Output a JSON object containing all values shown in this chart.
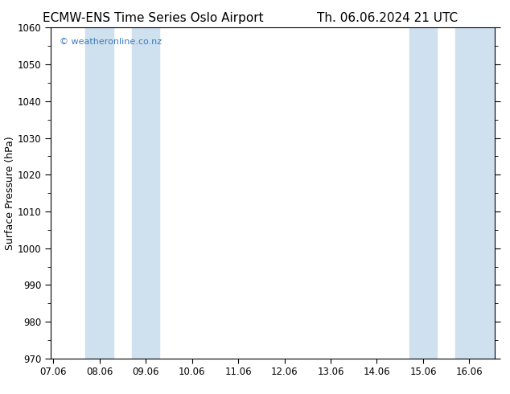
{
  "title_left": "ECMW-ENS Time Series Oslo Airport",
  "title_right": "Th. 06.06.2024 21 UTC",
  "ylabel": "Surface Pressure (hPa)",
  "ylim": [
    970,
    1060
  ],
  "yticks": [
    970,
    980,
    990,
    1000,
    1010,
    1020,
    1030,
    1040,
    1050,
    1060
  ],
  "xtick_labels": [
    "07.06",
    "08.06",
    "09.06",
    "10.06",
    "11.06",
    "12.06",
    "13.06",
    "14.06",
    "15.06",
    "16.06"
  ],
  "xtick_positions": [
    0,
    1,
    2,
    3,
    4,
    5,
    6,
    7,
    8,
    9
  ],
  "xlim_min": -0.05,
  "xlim_max": 9.55,
  "shaded_bands": [
    {
      "xmin": 0.7,
      "xmax": 1.3
    },
    {
      "xmin": 1.7,
      "xmax": 2.3
    },
    {
      "xmin": 7.7,
      "xmax": 8.3
    },
    {
      "xmin": 8.7,
      "xmax": 9.3
    },
    {
      "xmin": 9.2,
      "xmax": 9.55
    }
  ],
  "shade_color": "#cfe0ef",
  "background_color": "#ffffff",
  "watermark": "© weatheronline.co.nz",
  "watermark_color": "#3a7bbf",
  "title_fontsize": 11,
  "tick_fontsize": 8.5,
  "ylabel_fontsize": 9,
  "watermark_fontsize": 8
}
